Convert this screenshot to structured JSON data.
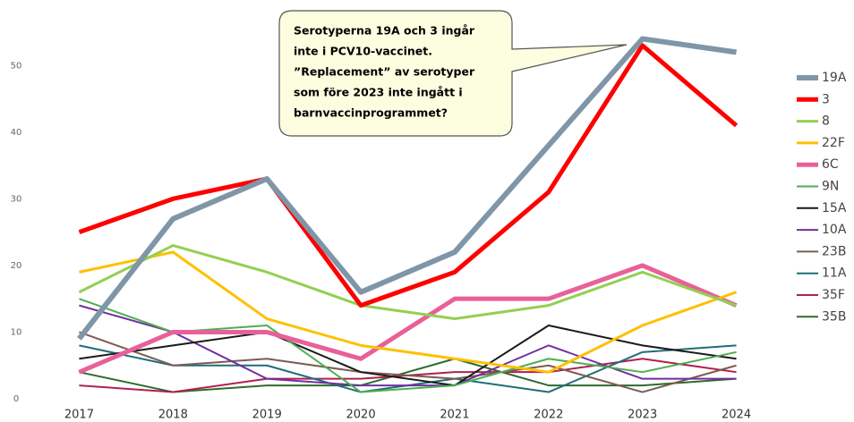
{
  "chart_data": {
    "type": "line",
    "categories": [
      "2017",
      "2018",
      "2019",
      "2020",
      "2021",
      "2022",
      "2023",
      "2024"
    ],
    "series": [
      {
        "name": "19A",
        "color": "#7f96a8",
        "width": 6,
        "values": [
          9,
          27,
          33,
          16,
          22,
          38,
          54,
          52
        ]
      },
      {
        "name": "3",
        "color": "#ff0000",
        "width": 5,
        "values": [
          25,
          30,
          33,
          14,
          19,
          31,
          53,
          41
        ]
      },
      {
        "name": "8",
        "color": "#92d050",
        "width": 3,
        "values": [
          16,
          23,
          19,
          14,
          12,
          14,
          19,
          14
        ]
      },
      {
        "name": "22F",
        "color": "#ffc000",
        "width": 3,
        "values": [
          19,
          22,
          12,
          8,
          6,
          4,
          11,
          16
        ]
      },
      {
        "name": "6C",
        "color": "#e8609a",
        "width": 5,
        "values": [
          4,
          10,
          10,
          6,
          15,
          15,
          20,
          14
        ]
      },
      {
        "name": "9N",
        "color": "#4caf50",
        "width": 2,
        "values": [
          15,
          10,
          11,
          1,
          2,
          6,
          4,
          7
        ]
      },
      {
        "name": "15A",
        "color": "#1a1a1a",
        "width": 2,
        "values": [
          6,
          8,
          10,
          4,
          2,
          11,
          8,
          6
        ]
      },
      {
        "name": "10A",
        "color": "#7030a0",
        "width": 2,
        "values": [
          14,
          10,
          3,
          2,
          2,
          8,
          3,
          3
        ]
      },
      {
        "name": "23B",
        "color": "#7b5c52",
        "width": 2,
        "values": [
          10,
          5,
          6,
          4,
          3,
          5,
          1,
          5
        ]
      },
      {
        "name": "11A",
        "color": "#1f6e7a",
        "width": 2,
        "values": [
          8,
          5,
          5,
          1,
          3,
          1,
          7,
          8
        ]
      },
      {
        "name": "35F",
        "color": "#b0204f",
        "width": 2,
        "values": [
          2,
          1,
          3,
          3,
          4,
          4,
          6,
          4
        ]
      },
      {
        "name": "35B",
        "color": "#2e6b2e",
        "width": 2,
        "values": [
          4,
          1,
          2,
          2,
          6,
          2,
          2,
          3
        ]
      }
    ],
    "annotation": [
      "Serotyperna 19A och 3 ingår",
      "inte i PCV10-vaccinet.",
      "”Replacement” av serotyper",
      "som före 2023 inte ingått i",
      "barnvaccinprogrammet?"
    ],
    "ylim": [
      0,
      55
    ],
    "yticks": [
      0,
      10,
      20,
      30,
      40,
      50
    ],
    "grid": false,
    "legend": "right"
  }
}
